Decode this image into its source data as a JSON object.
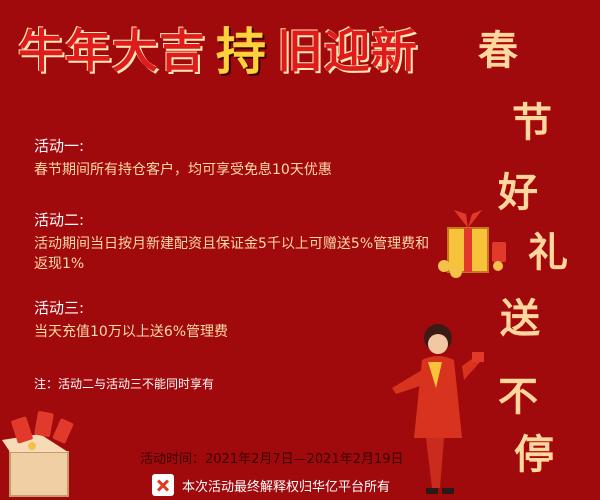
{
  "headline": {
    "part1": "牛年大吉",
    "part2": "持",
    "part3": "旧迎新"
  },
  "vertical": [
    "春",
    "节",
    "好",
    "礼",
    "送",
    "不",
    "停"
  ],
  "activities": [
    {
      "head": "活动一:",
      "body": "春节期间所有持仓客户，均可享受免息10天优惠"
    },
    {
      "head": "活动二:",
      "body": "活动期间当日按月新建配资且保证金5千以上可赠送5%管理费和返现1%"
    },
    {
      "head": "活动三:",
      "body": "当天充值10万以上送6%管理费"
    }
  ],
  "note": "注：活动二与活动三不能同时享有",
  "time": "活动时间：2021年2月7日—2021年2月19日",
  "footer": "本次活动最终解释权归华亿平台所有"
}
